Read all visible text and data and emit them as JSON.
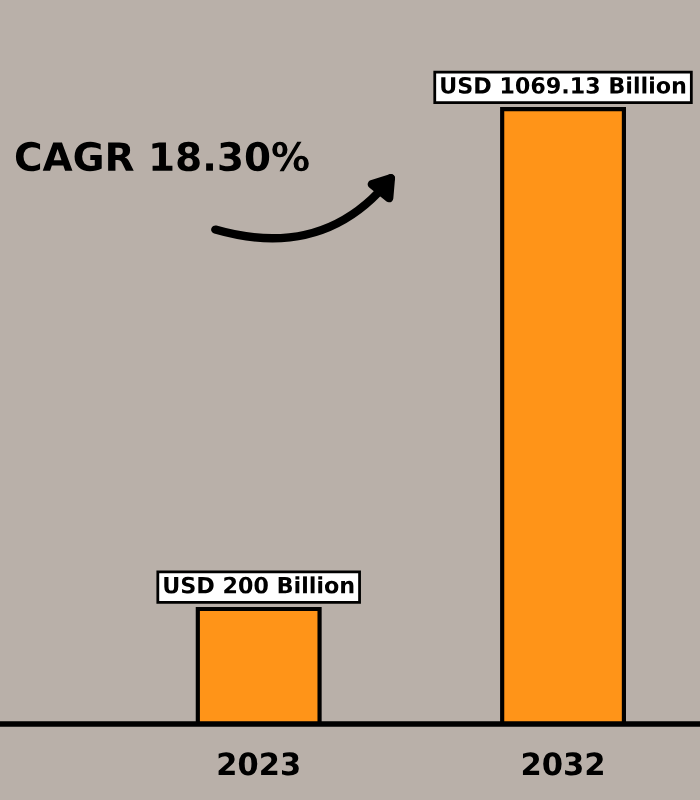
{
  "chart_data": {
    "type": "bar",
    "categories": [
      "2023",
      "2032"
    ],
    "values": [
      200,
      1069.13
    ],
    "value_labels": [
      "USD 200 Billion",
      "USD 1069.13 Billion"
    ],
    "color": "#ff9418",
    "annotations": [
      "CAGR 18.30%"
    ],
    "grid": false,
    "legend": false
  }
}
